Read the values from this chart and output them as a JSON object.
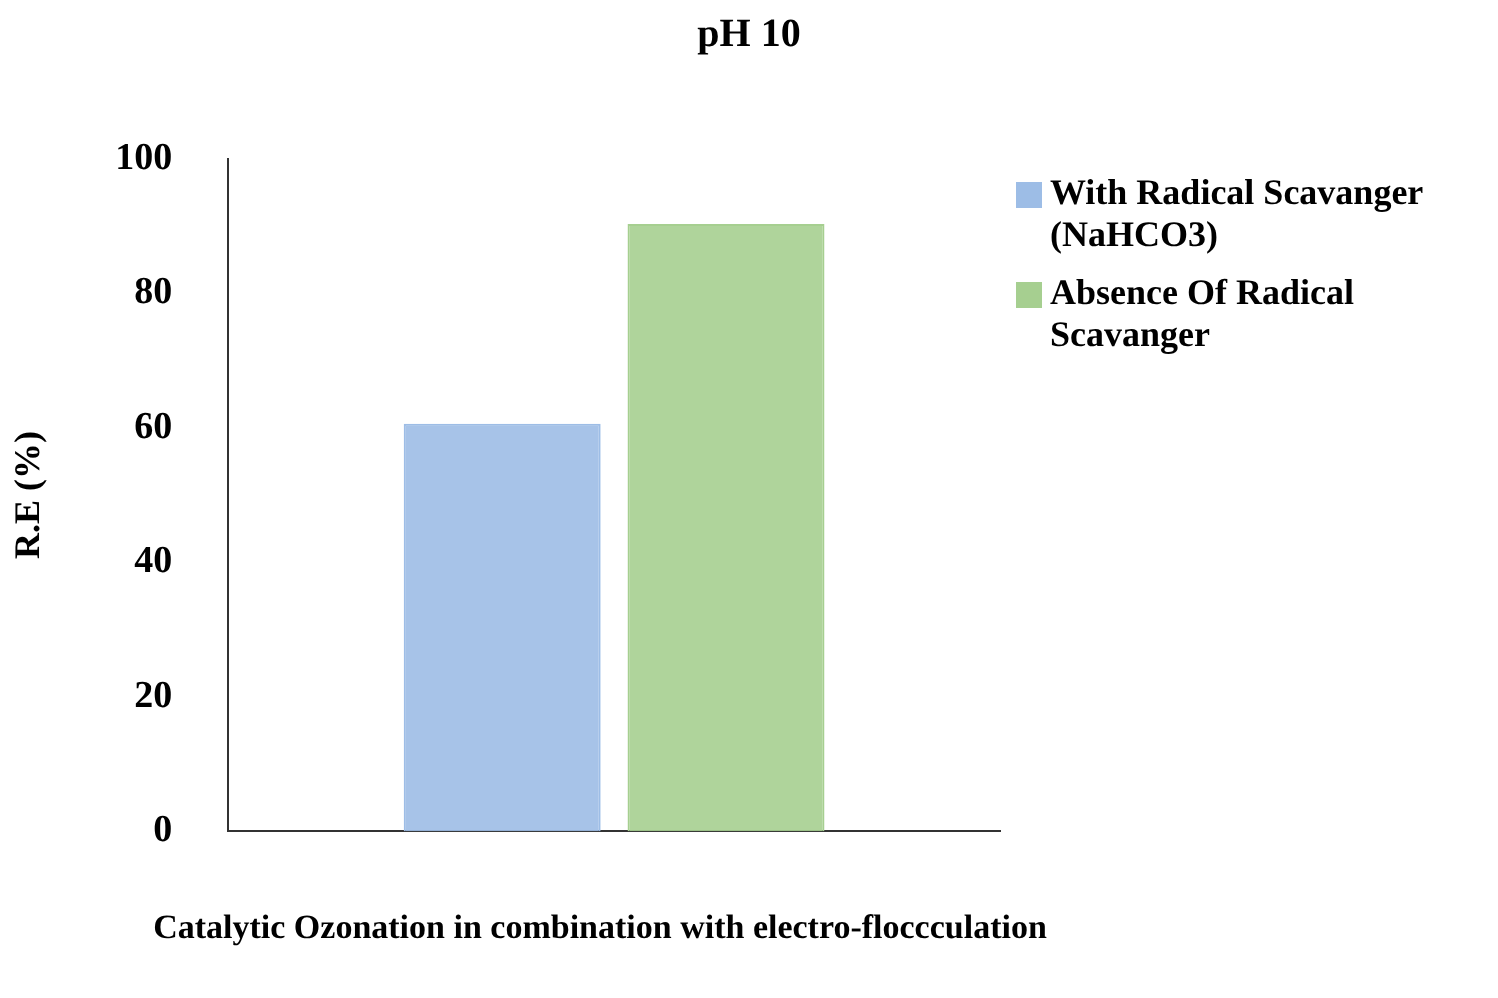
{
  "chart_data": {
    "type": "bar",
    "title": "pH 10",
    "xlabel": "Catalytic Ozonation in combination with electro-floccculation",
    "ylabel": "R.E (%)",
    "categories": [
      null
    ],
    "series": [
      {
        "name": "With Radical Scavanger (NaHCO3)",
        "color": "#9dbde6",
        "values": [
          60.6
        ]
      },
      {
        "name": "Absence Of Radical Scavanger",
        "color": "#a6cf90",
        "values": [
          90.3
        ]
      }
    ],
    "ylim": [
      0,
      100
    ],
    "yticks": [
      0,
      20,
      40,
      60,
      80,
      100
    ],
    "grid": false,
    "legend": "right"
  }
}
